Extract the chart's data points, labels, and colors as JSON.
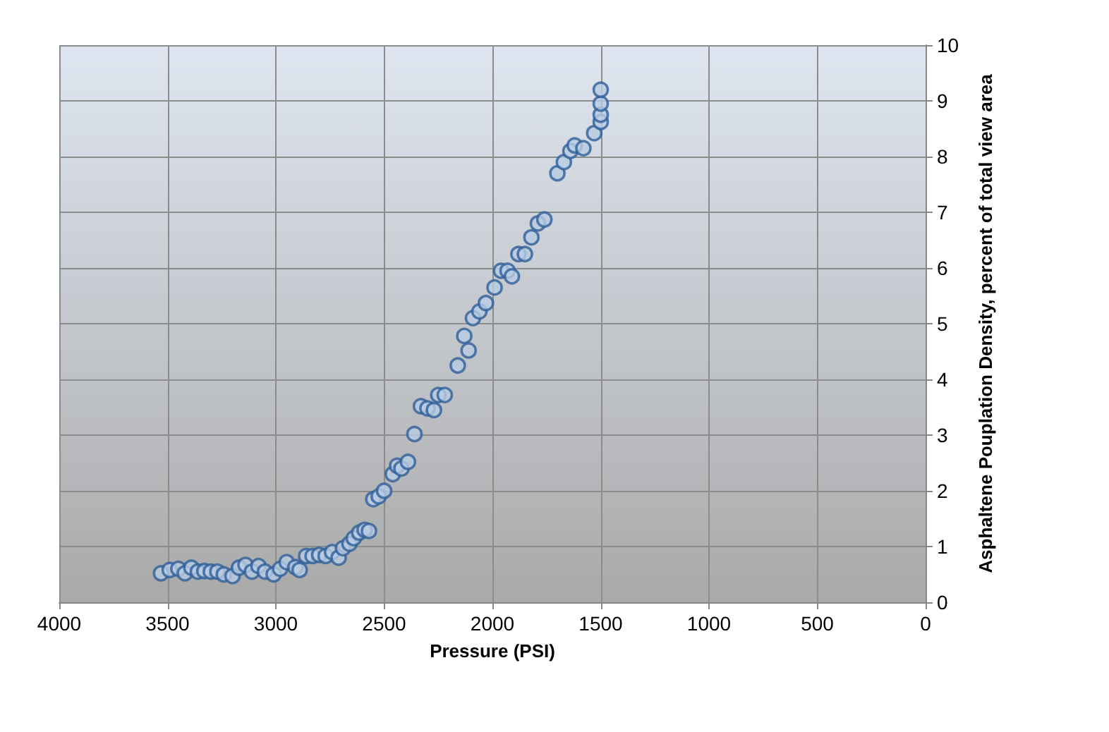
{
  "chart_data": {
    "type": "scatter",
    "xlabel": "Pressure (PSI)",
    "ylabel": "Asphaltene Pouplation Density, percent of total view area",
    "x": [
      3530,
      3490,
      3450,
      3420,
      3390,
      3360,
      3330,
      3300,
      3270,
      3240,
      3200,
      3170,
      3140,
      3110,
      3080,
      3050,
      3010,
      2980,
      2950,
      2910,
      2890,
      2860,
      2830,
      2800,
      2770,
      2740,
      2710,
      2690,
      2660,
      2640,
      2615,
      2590,
      2570,
      2550,
      2525,
      2500,
      2460,
      2440,
      2420,
      2390,
      2360,
      2330,
      2300,
      2270,
      2250,
      2220,
      2160,
      2130,
      2110,
      2090,
      2060,
      2030,
      1990,
      1960,
      1930,
      1910,
      1880,
      1850,
      1820,
      1790,
      1760,
      1700,
      1670,
      1640,
      1620,
      1580,
      1530,
      1500,
      1500,
      1500,
      1500
    ],
    "series": [
      {
        "color": "#b8cce4",
        "values": [
          0.52,
          0.58,
          0.6,
          0.52,
          0.62,
          0.55,
          0.56,
          0.55,
          0.55,
          0.5,
          0.47,
          0.62,
          0.67,
          0.55,
          0.65,
          0.55,
          0.5,
          0.6,
          0.72,
          0.63,
          0.58,
          0.83,
          0.83,
          0.85,
          0.83,
          0.9,
          0.8,
          0.97,
          1.05,
          1.15,
          1.25,
          1.3,
          1.28,
          1.85,
          1.9,
          2.0,
          2.3,
          2.45,
          2.4,
          2.52,
          3.02,
          3.52,
          3.48,
          3.45,
          3.72,
          3.72,
          4.25,
          4.78,
          4.52,
          5.1,
          5.22,
          5.37,
          5.65,
          5.95,
          5.95,
          5.85,
          6.25,
          6.25,
          6.55,
          6.8,
          6.87,
          7.7,
          7.9,
          8.1,
          8.2,
          8.15,
          8.42,
          8.62,
          8.75,
          8.95,
          9.2
        ]
      }
    ],
    "xlim": [
      4000,
      0
    ],
    "xticks": [
      4000,
      3500,
      3000,
      2500,
      2000,
      1500,
      1000,
      500,
      0
    ],
    "ylim": [
      0,
      10
    ],
    "yticks": [
      0,
      1,
      2,
      3,
      4,
      5,
      6,
      7,
      8,
      9,
      10
    ],
    "grid": true,
    "marker": "circle"
  }
}
